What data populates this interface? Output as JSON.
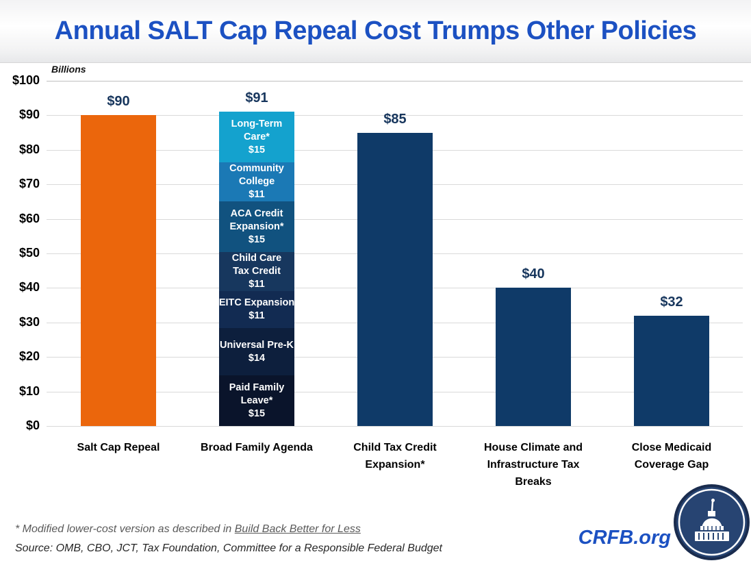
{
  "title": "Annual SALT Cap Repeal Cost Trumps Other Policies",
  "chart_data": {
    "type": "bar",
    "title": "Annual SALT Cap Repeal Cost Trumps Other Policies",
    "unit_label": "Billions",
    "xlabel": "",
    "ylabel": "Billions",
    "ylim": [
      0,
      100
    ],
    "y_tick_step": 10,
    "y_tick_labels": [
      "$0",
      "$10",
      "$20",
      "$30",
      "$40",
      "$50",
      "$60",
      "$70",
      "$80",
      "$90",
      "$100"
    ],
    "grid": true,
    "legend": "none",
    "categories": [
      "Salt Cap Repeal",
      "Broad Family Agenda",
      "Child Tax Credit Expansion*",
      "House Climate and Infrastructure Tax Breaks",
      "Close Medicaid Coverage Gap"
    ],
    "bars": [
      {
        "category": "Salt Cap Repeal",
        "value": 90,
        "value_label": "$90",
        "color": "#EB660C"
      },
      {
        "category": "Broad Family Agenda",
        "value": 91,
        "value_label": "$91",
        "segments": [
          {
            "name": "Long-Term Care*",
            "lines": [
              "Long-Term",
              "Care*"
            ],
            "value": 15,
            "value_label": "$15",
            "color": "#14A2CE"
          },
          {
            "name": "Community College",
            "lines": [
              "Community",
              "College"
            ],
            "value": 11,
            "value_label": "$11",
            "color": "#1B79B5"
          },
          {
            "name": "ACA Credit Expansion*",
            "lines": [
              "ACA Credit",
              "Expansion*"
            ],
            "value": 15,
            "value_label": "$15",
            "color": "#11527F"
          },
          {
            "name": "Child Care Tax Credit",
            "lines": [
              "Child Care",
              "Tax Credit"
            ],
            "value": 11,
            "value_label": "$11",
            "color": "#17375E"
          },
          {
            "name": "EITC Expansion",
            "lines": [
              "EITC Expansion"
            ],
            "value": 11,
            "value_label": "$11",
            "color": "#122B52"
          },
          {
            "name": "Universal Pre-K",
            "lines": [
              "Universal Pre-K"
            ],
            "value": 14,
            "value_label": "$14",
            "color": "#0D1F3D"
          },
          {
            "name": "Paid Family Leave*",
            "lines": [
              "Paid Family",
              "Leave*"
            ],
            "value": 15,
            "value_label": "$15",
            "color": "#0A142B"
          }
        ]
      },
      {
        "category": "Child Tax Credit Expansion*",
        "value": 85,
        "value_label": "$85",
        "color": "#0F3A68"
      },
      {
        "category": "House Climate and Infrastructure Tax Breaks",
        "value": 40,
        "value_label": "$40",
        "color": "#0F3A68"
      },
      {
        "category": "Close Medicaid Coverage Gap",
        "value": 32,
        "value_label": "$32",
        "color": "#0F3A68"
      }
    ]
  },
  "footer": {
    "note_prefix": "* Modified lower-cost version as described in ",
    "note_link": "Build Back Better for Less",
    "source": "Source: OMB, CBO, JCT, Tax Foundation, Committee for a Responsible Federal Budget"
  },
  "branding": {
    "site": "CRFB.org",
    "logo": "capitol-badge-icon"
  },
  "colors": {
    "title_blue": "#1C51C2",
    "value_label_navy": "#17365D",
    "bar_navy": "#0F3A68",
    "salt_cap_orange": "#EB660C",
    "gridline": "#D9D9D9",
    "footnote_gray": "#595959"
  }
}
